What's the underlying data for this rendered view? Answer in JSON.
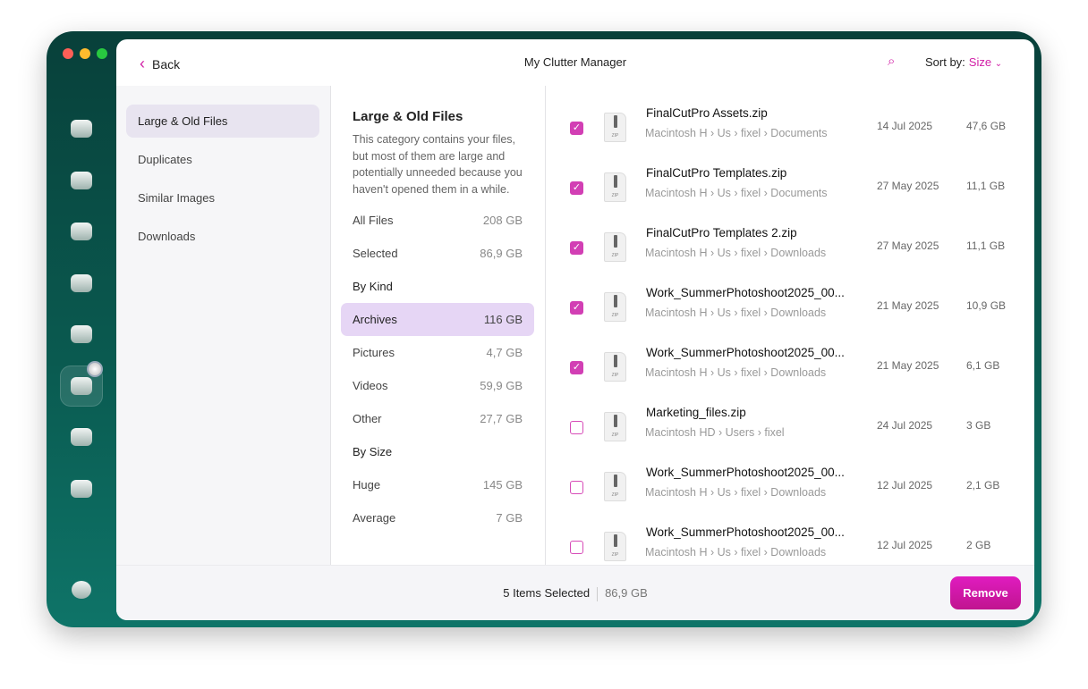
{
  "header": {
    "back_label": "Back",
    "title": "My Clutter Manager",
    "sort_label": "Sort by:",
    "sort_value": "Size"
  },
  "accent": "#d11fa6",
  "sidebar_icons": [
    "monitor-icon",
    "disk-icon",
    "hand-icon",
    "lightning-icon",
    "app-store-icon",
    "folder-icon",
    "magnifier-disk-icon",
    "cloud-icon"
  ],
  "nav": {
    "items": [
      {
        "label": "Large & Old Files",
        "selected": true
      },
      {
        "label": "Duplicates"
      },
      {
        "label": "Similar Images"
      },
      {
        "label": "Downloads"
      }
    ]
  },
  "category": {
    "title": "Large & Old Files",
    "description": "This category contains your files, but most of them are large and potentially unneeded because you haven't opened them in a while.",
    "rows": [
      {
        "label": "All Files",
        "value": "208 GB"
      },
      {
        "label": "Selected",
        "value": "86,9 GB"
      },
      {
        "label": "By Kind",
        "value": "",
        "head": true
      },
      {
        "label": "Archives",
        "value": "116 GB",
        "selected": true
      },
      {
        "label": "Pictures",
        "value": "4,7 GB"
      },
      {
        "label": "Videos",
        "value": "59,9 GB"
      },
      {
        "label": "Other",
        "value": "27,7 GB"
      },
      {
        "label": "By Size",
        "value": "",
        "head": true
      },
      {
        "label": "Huge",
        "value": "145 GB"
      },
      {
        "label": "Average",
        "value": "7 GB"
      }
    ]
  },
  "files": [
    {
      "name": "FinalCutPro Assets.zip",
      "path": "Macintosh H › Us › fixel › Documents",
      "date": "14 Jul 2025",
      "size": "47,6 GB",
      "checked": true
    },
    {
      "name": "FinalCutPro Templates.zip",
      "path": "Macintosh H › Us › fixel › Documents",
      "date": "27 May 2025",
      "size": "11,1 GB",
      "checked": true
    },
    {
      "name": "FinalCutPro Templates 2.zip",
      "path": "Macintosh H › Us › fixel › Downloads",
      "date": "27 May 2025",
      "size": "11,1 GB",
      "checked": true
    },
    {
      "name": "Work_SummerPhotoshoot2025_00...",
      "path": "Macintosh H › Us › fixel › Downloads",
      "date": "21 May 2025",
      "size": "10,9 GB",
      "checked": true
    },
    {
      "name": "Work_SummerPhotoshoot2025_00...",
      "path": "Macintosh H › Us › fixel › Downloads",
      "date": "21 May 2025",
      "size": "6,1 GB",
      "checked": true
    },
    {
      "name": "Marketing_files.zip",
      "path": "Macintosh HD › Users › fixel",
      "date": "24 Jul 2025",
      "size": "3 GB",
      "checked": false
    },
    {
      "name": "Work_SummerPhotoshoot2025_00...",
      "path": "Macintosh H › Us › fixel › Downloads",
      "date": "12 Jul 2025",
      "size": "2,1 GB",
      "checked": false
    },
    {
      "name": "Work_SummerPhotoshoot2025_00...",
      "path": "Macintosh H › Us › fixel › Downloads",
      "date": "12 Jul 2025",
      "size": "2 GB",
      "checked": false
    }
  ],
  "file_icon_label": "ZIP",
  "footer": {
    "selected_label": "5 Items Selected",
    "total": "86,9 GB",
    "remove_label": "Remove"
  }
}
